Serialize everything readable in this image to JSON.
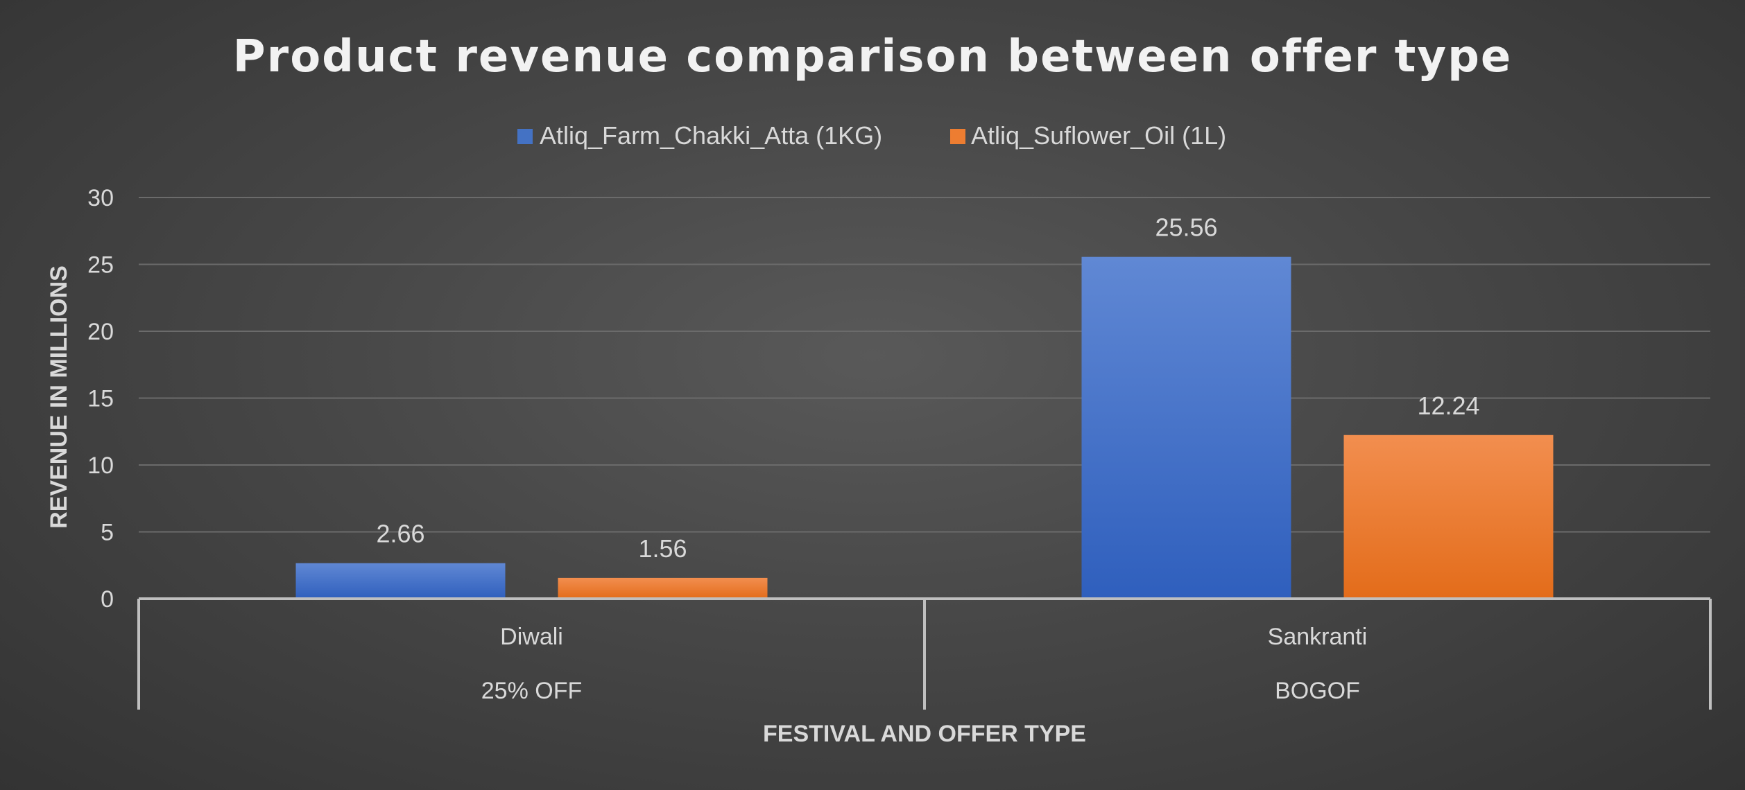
{
  "chart_data": {
    "type": "bar",
    "title": "Product revenue comparison between offer type",
    "xlabel": "FESTIVAL AND OFFER TYPE",
    "ylabel": "REVENUE IN MILLIONS",
    "ylim": [
      0,
      30
    ],
    "yticks": [
      "0",
      "5",
      "10",
      "15",
      "20",
      "25",
      "30"
    ],
    "grid": true,
    "legend_position": "top",
    "categories": [
      {
        "name": "Diwali",
        "offer": "25% OFF"
      },
      {
        "name": "Sankranti",
        "offer": "BOGOF"
      }
    ],
    "series": [
      {
        "name": "Atliq_Farm_Chakki_Atta (1KG)",
        "values": [
          2.66,
          25.56
        ],
        "labels": [
          "2.66",
          "25.56"
        ],
        "color": "#4472C4"
      },
      {
        "name": "Atliq_Suflower_Oil (1L)",
        "values": [
          1.56,
          12.24
        ],
        "labels": [
          "1.56",
          "12.24"
        ],
        "color": "#ED7D31"
      }
    ]
  }
}
